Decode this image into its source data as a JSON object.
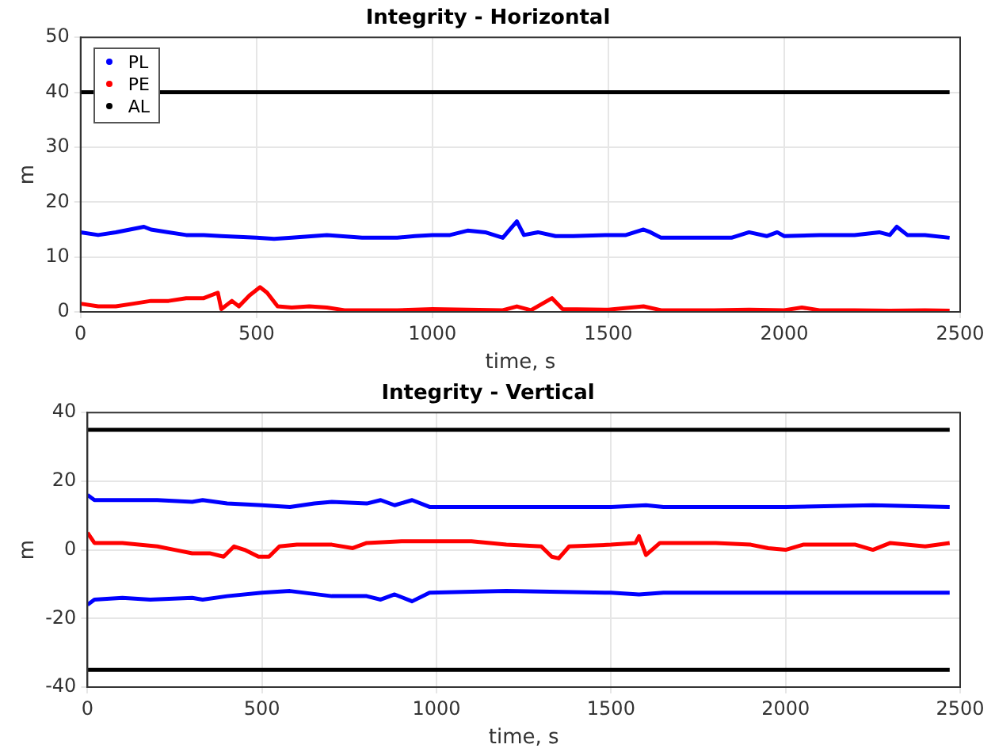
{
  "chart_data": [
    {
      "type": "line",
      "title": "Integrity - Horizontal",
      "xlabel": "time, s",
      "ylabel": "m",
      "xlim": [
        0,
        2500
      ],
      "xticks": [
        0,
        500,
        1000,
        1500,
        2000,
        2500
      ],
      "ylim": [
        0,
        50
      ],
      "yticks": [
        0,
        10,
        20,
        30,
        40,
        50
      ],
      "grid": true,
      "legend": "top left",
      "series": [
        {
          "name": "PL",
          "color": "#0000ff",
          "x": [
            0,
            50,
            100,
            180,
            200,
            250,
            300,
            350,
            400,
            500,
            550,
            600,
            700,
            800,
            900,
            950,
            1000,
            1050,
            1100,
            1150,
            1200,
            1240,
            1260,
            1300,
            1350,
            1400,
            1500,
            1550,
            1600,
            1620,
            1650,
            1700,
            1800,
            1850,
            1900,
            1950,
            1980,
            2000,
            2100,
            2200,
            2270,
            2300,
            2320,
            2350,
            2400,
            2470
          ],
          "values": [
            14.5,
            14,
            14.5,
            15.5,
            15,
            14.5,
            14,
            14,
            13.8,
            13.5,
            13.3,
            13.5,
            14,
            13.5,
            13.5,
            13.8,
            14,
            14,
            14.8,
            14.5,
            13.5,
            16.5,
            14,
            14.5,
            13.8,
            13.8,
            14,
            14,
            15,
            14.5,
            13.5,
            13.5,
            13.5,
            13.5,
            14.5,
            13.8,
            14.5,
            13.8,
            14,
            14,
            14.5,
            14,
            15.5,
            14,
            14,
            13.5
          ]
        },
        {
          "name": "PE",
          "color": "#ff0000",
          "x": [
            0,
            50,
            100,
            150,
            200,
            250,
            300,
            350,
            390,
            400,
            430,
            450,
            480,
            510,
            530,
            560,
            600,
            650,
            700,
            750,
            800,
            900,
            1000,
            1100,
            1200,
            1240,
            1280,
            1340,
            1370,
            1500,
            1600,
            1650,
            1800,
            1900,
            2000,
            2050,
            2100,
            2200,
            2300,
            2400,
            2470
          ],
          "values": [
            1.5,
            1,
            1,
            1.5,
            2,
            2,
            2.5,
            2.5,
            3.5,
            0.5,
            2,
            1,
            3,
            4.5,
            3.5,
            1,
            0.8,
            1,
            0.8,
            0.3,
            0.3,
            0.3,
            0.5,
            0.4,
            0.3,
            1,
            0.3,
            2.5,
            0.5,
            0.4,
            1,
            0.3,
            0.3,
            0.4,
            0.3,
            0.8,
            0.3,
            0.3,
            0.2,
            0.3,
            0.2
          ]
        },
        {
          "name": "AL",
          "color": "#000000",
          "x": [
            0,
            2470
          ],
          "values": [
            40,
            40
          ]
        }
      ]
    },
    {
      "type": "line",
      "title": "Integrity - Vertical",
      "xlabel": "time, s",
      "ylabel": "m",
      "xlim": [
        0,
        2500
      ],
      "xticks": [
        0,
        500,
        1000,
        1500,
        2000,
        2500
      ],
      "ylim": [
        -40,
        40
      ],
      "yticks": [
        -40,
        -20,
        0,
        20,
        40
      ],
      "grid": true,
      "series": [
        {
          "color": "#0000ff",
          "x": [
            0,
            20,
            100,
            200,
            300,
            330,
            400,
            500,
            580,
            650,
            700,
            800,
            840,
            880,
            930,
            980,
            1100,
            1300,
            1500,
            1600,
            1650,
            2000,
            2250,
            2470
          ],
          "values": [
            16,
            14.5,
            14.5,
            14.5,
            14,
            14.5,
            13.5,
            13,
            12.5,
            13.5,
            14,
            13.5,
            14.5,
            13,
            14.5,
            12.5,
            12.5,
            12.5,
            12.5,
            13,
            12.5,
            12.5,
            13,
            12.5
          ]
        },
        {
          "color": "#0000ff",
          "x": [
            0,
            20,
            100,
            180,
            300,
            330,
            400,
            500,
            580,
            700,
            800,
            840,
            880,
            930,
            980,
            1200,
            1500,
            1580,
            1650,
            2000,
            2470
          ],
          "values": [
            -16,
            -14.5,
            -14,
            -14.5,
            -14,
            -14.5,
            -13.5,
            -12.5,
            -12,
            -13.5,
            -13.5,
            -14.5,
            -13,
            -15,
            -12.5,
            -12,
            -12.5,
            -13,
            -12.5,
            -12.5,
            -12.5
          ]
        },
        {
          "color": "#ff0000",
          "x": [
            0,
            20,
            100,
            200,
            250,
            300,
            350,
            390,
            420,
            450,
            490,
            520,
            550,
            600,
            650,
            700,
            760,
            800,
            900,
            1000,
            1100,
            1200,
            1300,
            1330,
            1350,
            1380,
            1500,
            1570,
            1580,
            1600,
            1640,
            1700,
            1800,
            1900,
            1950,
            2000,
            2050,
            2100,
            2200,
            2250,
            2300,
            2400,
            2470
          ],
          "values": [
            5,
            2,
            2,
            1,
            0,
            -1,
            -1,
            -2,
            1,
            0,
            -2,
            -2,
            1,
            1.5,
            1.5,
            1.5,
            0.5,
            2,
            2.5,
            2.5,
            2.5,
            1.5,
            1,
            -2,
            -2.5,
            1,
            1.5,
            2,
            4,
            -1.5,
            2,
            2,
            2,
            1.5,
            0.5,
            0,
            1.5,
            1.5,
            1.5,
            0,
            2,
            1,
            2
          ]
        },
        {
          "color": "#000000",
          "x": [
            0,
            2470
          ],
          "values": [
            35,
            35
          ]
        },
        {
          "color": "#000000",
          "x": [
            0,
            2470
          ],
          "values": [
            -35,
            -35
          ]
        }
      ]
    }
  ]
}
